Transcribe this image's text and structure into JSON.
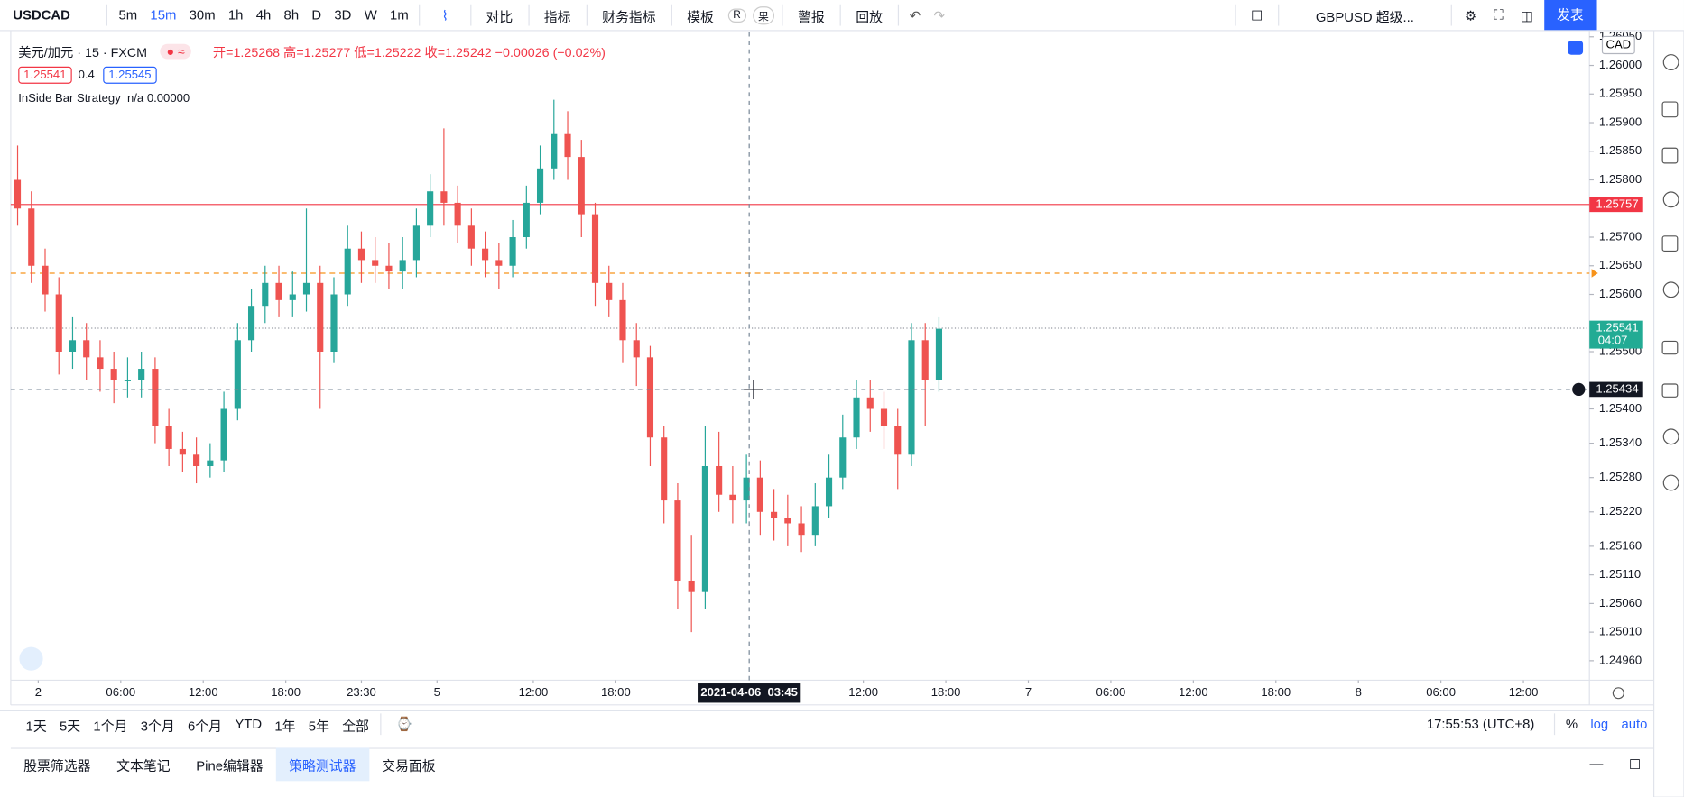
{
  "toolbar": {
    "symbol": "USDCAD",
    "intervals": [
      "5m",
      "15m",
      "30m",
      "1h",
      "4h",
      "8h",
      "D",
      "3D",
      "W",
      "1m"
    ],
    "active_interval": 1,
    "tools": [
      "对比",
      "指标",
      "财务指标",
      "模板",
      "警报",
      "回放"
    ],
    "template_badges": [
      "R",
      "果"
    ],
    "compare": "GBPUSD 超级...",
    "publish": "发表"
  },
  "legend": {
    "title": "美元/加元 · 15 · FXCM",
    "ohlc": "开=1.25268 高=1.25277 低=1.25222 收=1.25242 −0.00026 (−0.02%)",
    "bid": "1.25541",
    "spread": "0.4",
    "ask": "1.25545",
    "strategy": "InSide Bar Strategy  n/a 0.00000"
  },
  "chart_data": {
    "type": "candlestick",
    "currency": "CAD",
    "up_color": "#26a69a",
    "down_color": "#ef5350",
    "open": [
      1.258,
      1.2575,
      1.2565,
      1.256,
      1.255,
      1.2552,
      1.2549,
      1.2547,
      1.2545,
      1.2545,
      1.2547,
      1.2537,
      1.2533,
      1.2532,
      1.253,
      1.2531,
      1.254,
      1.2552,
      1.2558,
      1.2562,
      1.2559,
      1.256,
      1.2562,
      1.255,
      1.256,
      1.2568,
      1.2566,
      1.2565,
      1.2564,
      1.2566,
      1.2572,
      1.2578,
      1.2576,
      1.2572,
      1.2568,
      1.2566,
      1.2565,
      1.257,
      1.2576,
      1.2582,
      1.2588,
      1.2584,
      1.2574,
      1.2562,
      1.2559,
      1.2552,
      1.2549,
      1.2535,
      1.2524,
      1.251,
      1.2508,
      1.253,
      1.2525,
      1.2524,
      1.2528,
      1.2522,
      1.2521,
      1.252,
      1.2518,
      1.2523,
      1.2528,
      1.2535,
      1.2542,
      1.254,
      1.2537,
      1.2532,
      1.2552,
      1.2545
    ],
    "high": [
      1.2586,
      1.2578,
      1.2568,
      1.2563,
      1.2556,
      1.2555,
      1.2552,
      1.255,
      1.2549,
      1.255,
      1.2549,
      1.254,
      1.2536,
      1.2535,
      1.2534,
      1.2543,
      1.2555,
      1.2561,
      1.2565,
      1.2565,
      1.2564,
      1.2575,
      1.2565,
      1.2563,
      1.2572,
      1.2571,
      1.257,
      1.2569,
      1.257,
      1.2575,
      1.2581,
      1.2589,
      1.2579,
      1.2575,
      1.2571,
      1.2569,
      1.2573,
      1.2579,
      1.2586,
      1.2594,
      1.2592,
      1.2587,
      1.2576,
      1.2565,
      1.2562,
      1.2555,
      1.2551,
      1.2537,
      1.2527,
      1.2518,
      1.2537,
      1.2536,
      1.253,
      1.2532,
      1.2531,
      1.2526,
      1.2525,
      1.2523,
      1.2527,
      1.2532,
      1.2539,
      1.2545,
      1.2545,
      1.2543,
      1.254,
      1.2555,
      1.2555,
      1.2556
    ],
    "low": [
      1.2572,
      1.2562,
      1.2557,
      1.2546,
      1.2547,
      1.2545,
      1.2543,
      1.2541,
      1.2542,
      1.2542,
      1.2534,
      1.253,
      1.2529,
      1.2527,
      1.2528,
      1.2529,
      1.2538,
      1.255,
      1.2555,
      1.2556,
      1.2556,
      1.2557,
      1.254,
      1.2548,
      1.2558,
      1.2562,
      1.2562,
      1.2561,
      1.2561,
      1.2563,
      1.257,
      1.2572,
      1.2569,
      1.2565,
      1.2563,
      1.2561,
      1.2563,
      1.2568,
      1.2574,
      1.258,
      1.258,
      1.257,
      1.2558,
      1.2556,
      1.2548,
      1.2544,
      1.253,
      1.252,
      1.2505,
      1.2501,
      1.2505,
      1.2522,
      1.252,
      1.252,
      1.2518,
      1.2517,
      1.2516,
      1.2515,
      1.2516,
      1.2521,
      1.2526,
      1.2533,
      1.2536,
      1.2533,
      1.2526,
      1.253,
      1.2537,
      1.2543
    ],
    "close": [
      1.2575,
      1.2565,
      1.256,
      1.255,
      1.2552,
      1.2549,
      1.2547,
      1.2545,
      1.2545,
      1.2547,
      1.2537,
      1.2533,
      1.2532,
      1.253,
      1.2531,
      1.254,
      1.2552,
      1.2558,
      1.2562,
      1.2559,
      1.256,
      1.2562,
      1.255,
      1.256,
      1.2568,
      1.2566,
      1.2565,
      1.2564,
      1.2566,
      1.2572,
      1.2578,
      1.2576,
      1.2572,
      1.2568,
      1.2566,
      1.2565,
      1.257,
      1.2576,
      1.2582,
      1.2588,
      1.2584,
      1.2574,
      1.2562,
      1.2559,
      1.2552,
      1.2549,
      1.2535,
      1.2524,
      1.251,
      1.2508,
      1.253,
      1.2525,
      1.2524,
      1.2528,
      1.2522,
      1.2521,
      1.252,
      1.2518,
      1.2523,
      1.2528,
      1.2535,
      1.2542,
      1.254,
      1.2537,
      1.2532,
      1.2552,
      1.2545,
      1.2554
    ],
    "xlim": [
      -0.5,
      114.3
    ],
    "xticks": [
      {
        "value": 1.5,
        "label": "2"
      },
      {
        "value": 7.5,
        "label": "06:00"
      },
      {
        "value": 13.5,
        "label": "12:00"
      },
      {
        "value": 19.5,
        "label": "18:00"
      },
      {
        "value": 25,
        "label": "23:30"
      },
      {
        "value": 30.5,
        "label": "5"
      },
      {
        "value": 37.5,
        "label": "12:00"
      },
      {
        "value": 43.5,
        "label": "18:00"
      },
      {
        "value": 61.5,
        "label": "12:00"
      },
      {
        "value": 67.5,
        "label": "18:00"
      },
      {
        "value": 73.5,
        "label": "7"
      },
      {
        "value": 79.5,
        "label": "06:00"
      },
      {
        "value": 85.5,
        "label": "12:00"
      },
      {
        "value": 91.5,
        "label": "18:00"
      },
      {
        "value": 97.5,
        "label": "8"
      },
      {
        "value": 103.5,
        "label": "06:00"
      },
      {
        "value": 109.5,
        "label": "12:00"
      }
    ],
    "ylim": [
      1.24926,
      1.26058
    ],
    "yticks": [
      {
        "value": 1.2605,
        "label": "1.26050"
      },
      {
        "value": 1.26,
        "label": "1.26000"
      },
      {
        "value": 1.2595,
        "label": "1.25950"
      },
      {
        "value": 1.259,
        "label": "1.25900"
      },
      {
        "value": 1.2585,
        "label": "1.25850"
      },
      {
        "value": 1.258,
        "label": "1.25800"
      },
      {
        "value": 1.257,
        "label": "1.25700"
      },
      {
        "value": 1.2565,
        "label": "1.25650"
      },
      {
        "value": 1.256,
        "label": "1.25600"
      },
      {
        "value": 1.255,
        "label": "1.25500"
      },
      {
        "value": 1.254,
        "label": "1.25400"
      },
      {
        "value": 1.2534,
        "label": "1.25340"
      },
      {
        "value": 1.2528,
        "label": "1.25280"
      },
      {
        "value": 1.2522,
        "label": "1.25220"
      },
      {
        "value": 1.2516,
        "label": "1.25160"
      },
      {
        "value": 1.2511,
        "label": "1.25110"
      },
      {
        "value": 1.2506,
        "label": "1.25060"
      },
      {
        "value": 1.2501,
        "label": "1.25010"
      },
      {
        "value": 1.2496,
        "label": "1.24960"
      }
    ],
    "grid": false,
    "hlines": [
      {
        "value": 1.25757,
        "label": "1.25757",
        "color": "#f23645",
        "style": "solid"
      },
      {
        "value": 1.25637,
        "color": "#f7931a",
        "style": "dashed"
      },
      {
        "value": 1.25541,
        "label": "1.25541",
        "sublabel": "04:07",
        "color": "#22ab94",
        "style": "dotted"
      }
    ],
    "crosshair": {
      "x": 53.2,
      "x_label": "2021-04-06  03:45",
      "y": 1.25434,
      "y_label": "1.25434"
    }
  },
  "range_bar": {
    "ranges": [
      "1天",
      "5天",
      "1个月",
      "3个月",
      "6个月",
      "YTD",
      "1年",
      "5年",
      "全部"
    ],
    "clock": "17:55:53 (UTC+8)",
    "options": [
      "%",
      "log",
      "auto"
    ]
  },
  "panel": {
    "tabs": [
      "股票筛选器",
      "文本笔记",
      "Pine编辑器",
      "策略测试器",
      "交易面板"
    ],
    "active": 3
  }
}
